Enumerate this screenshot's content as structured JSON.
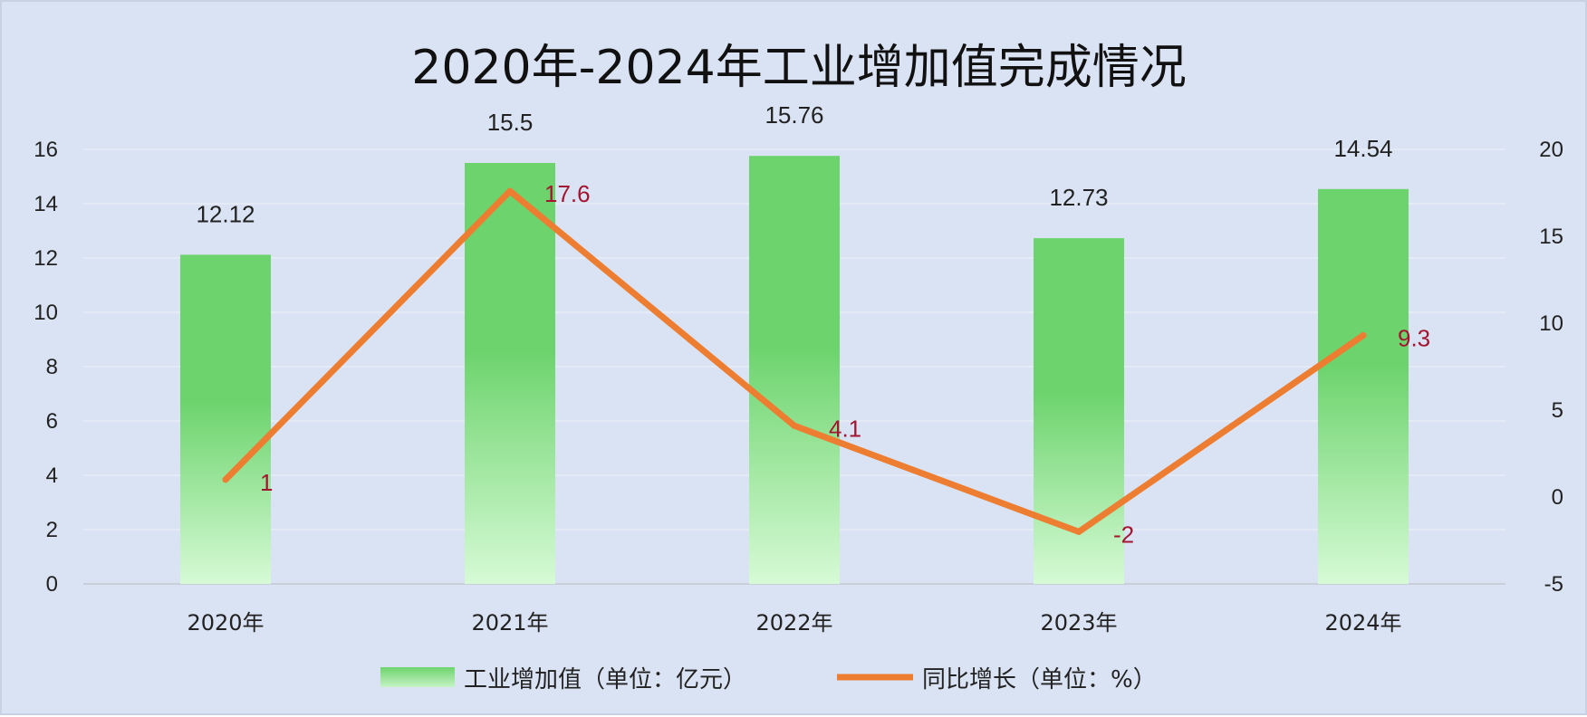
{
  "chart_data": {
    "type": "bar",
    "title": "2020年-2024年工业增加值完成情况",
    "categories": [
      "2020年",
      "2021年",
      "2022年",
      "2023年",
      "2024年"
    ],
    "series": [
      {
        "name": "工业增加值（单位：亿元）",
        "type": "bar",
        "axis": "left",
        "values": [
          12.12,
          15.5,
          15.76,
          12.73,
          14.54
        ],
        "labels": [
          "12.12",
          "15.5",
          "15.76",
          "12.73",
          "14.54"
        ],
        "color_top": "#6dd46d",
        "color_bottom": "#d6fad6"
      },
      {
        "name": "同比增长（单位：%）",
        "type": "line",
        "axis": "right",
        "values": [
          1,
          17.6,
          4.1,
          -2,
          9.3
        ],
        "labels": [
          "1",
          "17.6",
          "4.1",
          "-2",
          "9.3"
        ],
        "color": "#ed7d31",
        "label_color": "#a31530"
      }
    ],
    "y_left": {
      "min": 0,
      "max": 16,
      "ticks": [
        "0",
        "2",
        "4",
        "6",
        "8",
        "10",
        "12",
        "14",
        "16"
      ]
    },
    "y_right": {
      "min": -5,
      "max": 20,
      "ticks": [
        "-5",
        "0",
        "5",
        "10",
        "15",
        "20"
      ]
    },
    "grid": true,
    "legend_position": "bottom",
    "background": "#dae3f3",
    "gridline_color": "#e8eef8"
  }
}
